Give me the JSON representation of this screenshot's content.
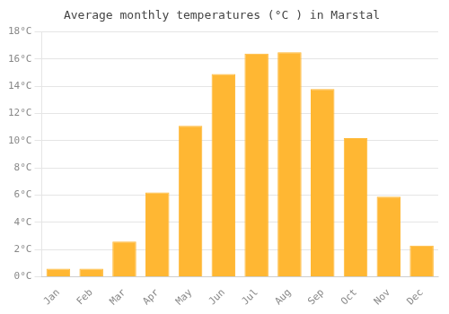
{
  "chart_data": {
    "type": "bar",
    "title": "Average monthly temperatures (°C ) in Marstal",
    "categories": [
      "Jan",
      "Feb",
      "Mar",
      "Apr",
      "May",
      "Jun",
      "Jul",
      "Aug",
      "Sep",
      "Oct",
      "Nov",
      "Dec"
    ],
    "values": [
      0.6,
      0.6,
      2.6,
      6.2,
      11.1,
      14.9,
      16.4,
      16.5,
      13.8,
      10.2,
      5.9,
      2.3
    ],
    "color": "#FFB733",
    "ylim": [
      0,
      18
    ],
    "yticks": [
      {
        "value": 0,
        "label": "0°C"
      },
      {
        "value": 2,
        "label": "2°C"
      },
      {
        "value": 4,
        "label": "4°C"
      },
      {
        "value": 6,
        "label": "6°C"
      },
      {
        "value": 8,
        "label": "8°C"
      },
      {
        "value": 10,
        "label": "10°C"
      },
      {
        "value": 12,
        "label": "12°C"
      },
      {
        "value": 14,
        "label": "14°C"
      },
      {
        "value": 16,
        "label": "16°C"
      },
      {
        "value": 18,
        "label": "18°C"
      }
    ],
    "grid": true
  }
}
